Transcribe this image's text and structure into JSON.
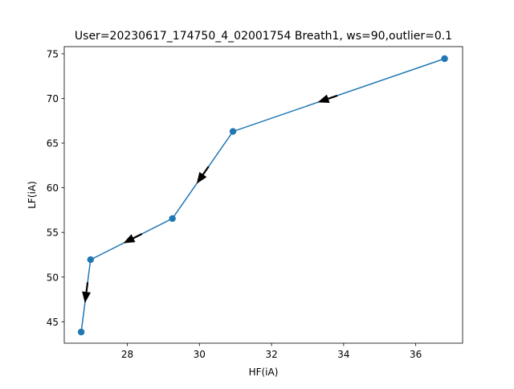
{
  "chart_data": {
    "type": "line",
    "title": "User=20230617_174750_4_02001754 Breath1, ws=90,outlier=0.1",
    "xlabel": "HF(iA)",
    "ylabel": "LF(iA)",
    "xlim": [
      26.25,
      37.3
    ],
    "ylim": [
      42.6,
      75.8
    ],
    "xticks": [
      28,
      30,
      32,
      34,
      36
    ],
    "yticks": [
      45,
      50,
      55,
      60,
      65,
      70,
      75
    ],
    "grid": false,
    "series": [
      {
        "x": [
          36.8,
          30.93,
          29.25,
          26.98,
          26.72
        ],
        "y": [
          74.45,
          66.3,
          56.55,
          51.95,
          43.85
        ],
        "color": "#1f77b4",
        "marker": "circle",
        "direction_arrows": true,
        "arrow_color": "#000000"
      }
    ]
  }
}
